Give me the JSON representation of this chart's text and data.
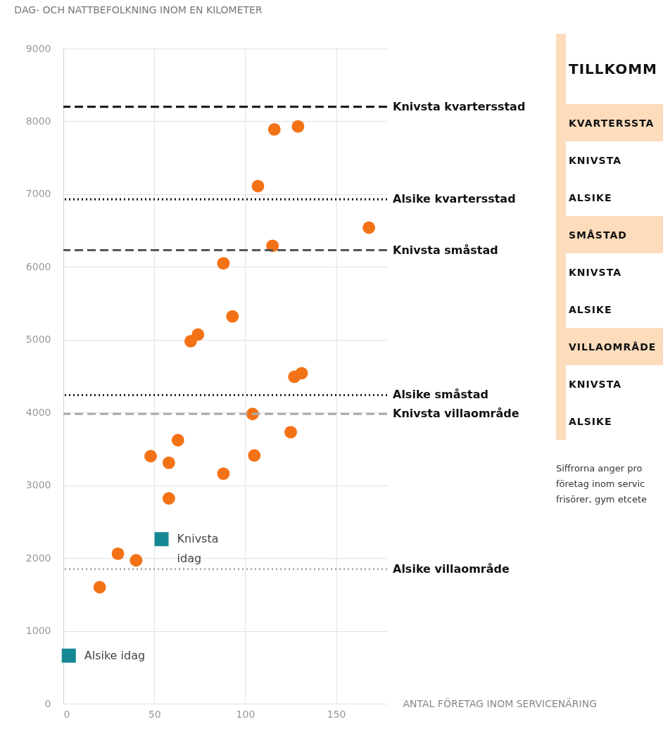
{
  "chart_data": [
    {
      "type": "scatter",
      "title": "DAG- OCH NATTBEFOLKNING INOM EN KILOMETER",
      "xlabel": "ANTAL FÖRETAG INOM SERVICENÄRING",
      "series": [
        {
          "color": "#f47216",
          "marker": "circle",
          "x": [
            20,
            30,
            40,
            48,
            58,
            58,
            63,
            70,
            74,
            88,
            88,
            93,
            104,
            105,
            107,
            115,
            116,
            125,
            127,
            131,
            129,
            168
          ],
          "values": [
            1600,
            2060,
            1970,
            3400,
            3310,
            2820,
            3620,
            4980,
            5070,
            3160,
            6050,
            5320,
            3980,
            3410,
            7110,
            6290,
            7890,
            3730,
            4490,
            4540,
            7930,
            6540
          ]
        },
        {
          "color": "#168893",
          "marker": "square",
          "x": [
            3,
            54
          ],
          "values": [
            660,
            2260
          ]
        }
      ],
      "annotations": [
        {
          "text": "Alsike idag",
          "x": 3,
          "y": 660
        },
        {
          "text": "Knivsta\nidag",
          "x": 54,
          "y": 2260
        }
      ],
      "ref_lines": [
        {
          "axis": "y",
          "value": 8200,
          "label": "Knivsta kvartersstad",
          "color": "#111111",
          "line_style": "dashed"
        },
        {
          "axis": "y",
          "value": 6930,
          "label": "Alsike kvartersstad",
          "color": "#111111",
          "line_style": "dotted"
        },
        {
          "axis": "y",
          "value": 6230,
          "label": "Knivsta småstad",
          "color": "#555555",
          "line_style": "dashed"
        },
        {
          "axis": "y",
          "value": 4240,
          "label": "Alsike småstad",
          "color": "#222222",
          "line_style": "dotted"
        },
        {
          "axis": "y",
          "value": 3980,
          "label": "Knivsta villaområde",
          "color": "#aaaaaa",
          "line_style": "dashed"
        },
        {
          "axis": "y",
          "value": 1850,
          "label": "Alsike villaområde",
          "color": "#aaaaaa",
          "line_style": "dotted"
        }
      ],
      "xlim": [
        0,
        178
      ],
      "xticks": [
        0,
        50,
        100,
        150
      ],
      "ylim": [
        0,
        9000
      ],
      "yticks": [
        0,
        1000,
        2000,
        3000,
        4000,
        5000,
        6000,
        7000,
        8000,
        9000
      ],
      "grid": true
    },
    {
      "type": "other",
      "title": "TILLKOMM",
      "annotations": [
        "KVARTERSSTA",
        "KNIVSTA",
        "ALSIKE",
        "SMÅSTAD",
        "KNIVSTA",
        "ALSIKE",
        "VILLAOMRÅDE",
        "KNIVSTA",
        "ALSIKE",
        "Siffrorna anger pro\nföretag inom servic\nfrisörer, gym etcete"
      ]
    }
  ]
}
